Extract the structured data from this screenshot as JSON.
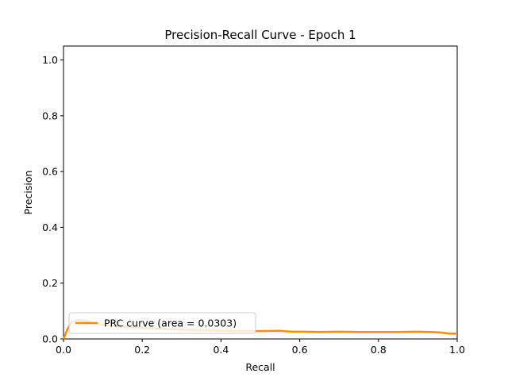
{
  "chart_data": {
    "type": "line",
    "title": "Precision-Recall Curve - Epoch 1",
    "xlabel": "Recall",
    "ylabel": "Precision",
    "xlim": [
      0.0,
      1.0
    ],
    "ylim": [
      0.0,
      1.05
    ],
    "xticks": [
      "0.0",
      "0.2",
      "0.4",
      "0.6",
      "0.8",
      "1.0"
    ],
    "yticks": [
      "0.0",
      "0.2",
      "0.4",
      "0.6",
      "0.8",
      "1.0"
    ],
    "grid": false,
    "legend_position": "lower left",
    "series": [
      {
        "name": "PRC curve (area = 0.0303)",
        "color": "#ff8c00",
        "x": [
          0.0,
          0.01,
          0.02,
          0.04,
          0.06,
          0.08,
          0.1,
          0.15,
          0.2,
          0.25,
          0.3,
          0.35,
          0.4,
          0.45,
          0.5,
          0.55,
          0.58,
          0.6,
          0.65,
          0.7,
          0.75,
          0.8,
          0.85,
          0.9,
          0.93,
          0.95,
          0.97,
          0.98,
          1.0
        ],
        "y": [
          0.0,
          0.035,
          0.06,
          0.068,
          0.062,
          0.056,
          0.05,
          0.044,
          0.04,
          0.036,
          0.033,
          0.031,
          0.029,
          0.028,
          0.028,
          0.029,
          0.026,
          0.026,
          0.025,
          0.026,
          0.025,
          0.025,
          0.025,
          0.026,
          0.025,
          0.024,
          0.021,
          0.019,
          0.019
        ]
      }
    ]
  }
}
